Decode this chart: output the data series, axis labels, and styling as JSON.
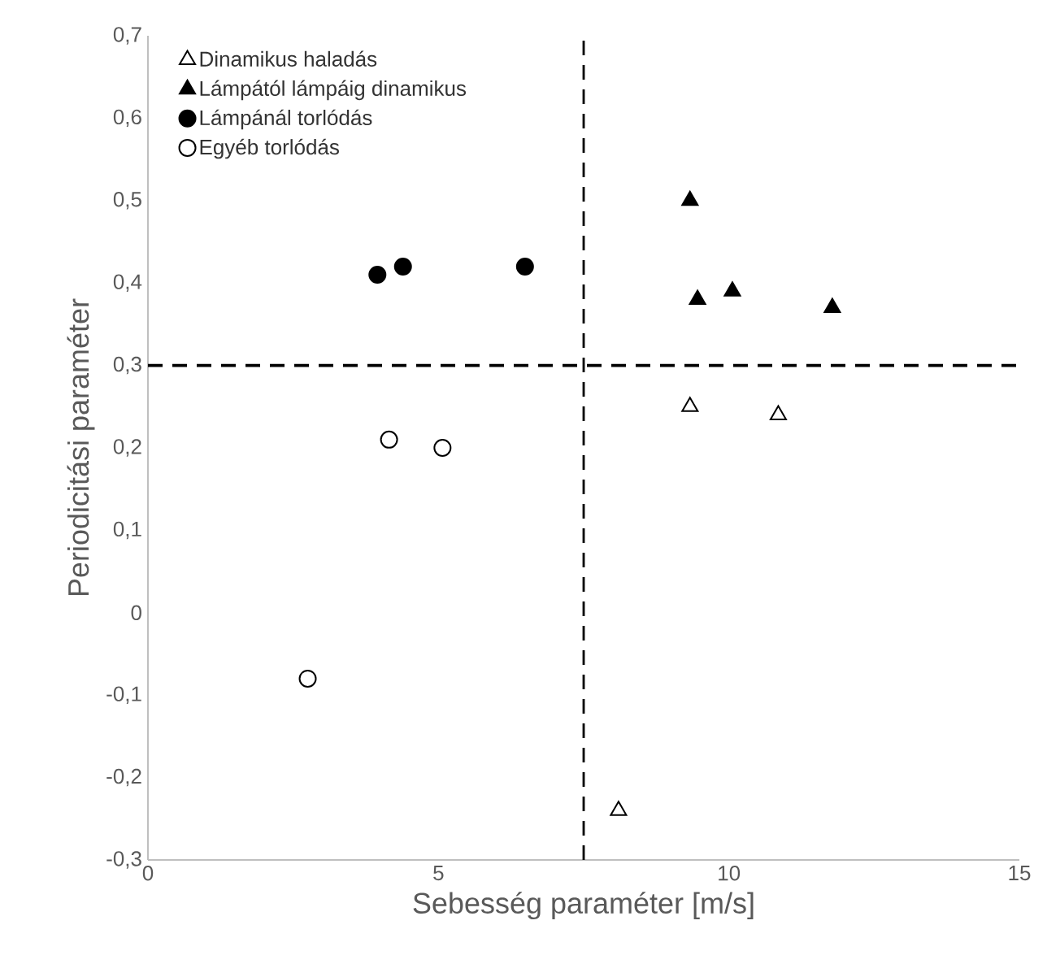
{
  "chart_data": {
    "type": "scatter",
    "xlabel": "Sebesség paraméter [m/s]",
    "ylabel": "Periodicitási paraméter",
    "xlim": [
      0,
      15
    ],
    "ylim": [
      -0.3,
      0.7
    ],
    "xticks": [
      0,
      5,
      10,
      15
    ],
    "yticks": [
      {
        "value": -0.3,
        "label": "-0,3"
      },
      {
        "value": -0.2,
        "label": "-0,2"
      },
      {
        "value": -0.1,
        "label": "-0,1"
      },
      {
        "value": 0,
        "label": "0"
      },
      {
        "value": 0.1,
        "label": "0,1"
      },
      {
        "value": 0.2,
        "label": "0,2"
      },
      {
        "value": 0.3,
        "label": "0,3"
      },
      {
        "value": 0.4,
        "label": "0,4"
      },
      {
        "value": 0.5,
        "label": "0,5"
      },
      {
        "value": 0.6,
        "label": "0,6"
      },
      {
        "value": 0.7,
        "label": "0,7"
      }
    ],
    "grid": false,
    "legend": "top left",
    "series": [
      {
        "name": "Dinamikus haladás",
        "color": "#ffffff",
        "marker": "triangle",
        "x": [
          9.33,
          10.85,
          8.1
        ],
        "values": [
          0.25,
          0.24,
          -0.24
        ]
      },
      {
        "name": "Lámpától lámpáig dinamikus",
        "color": "#000000",
        "marker": "triangle",
        "x": [
          9.33,
          9.46,
          10.06,
          11.78
        ],
        "values": [
          0.5,
          0.38,
          0.39,
          0.37
        ]
      },
      {
        "name": "Lámpánál torlódás",
        "color": "#000000",
        "marker": "circle",
        "x": [
          3.95,
          4.39,
          6.49
        ],
        "values": [
          0.41,
          0.42,
          0.42
        ]
      },
      {
        "name": "Egyéb torlódás",
        "color": "#ffffff",
        "marker": "circle",
        "x": [
          4.15,
          5.07,
          2.75
        ],
        "values": [
          0.21,
          0.2,
          -0.08
        ]
      }
    ],
    "ref_lines": [
      {
        "axis": "y",
        "value": 0.3,
        "line_style": "dashed"
      },
      {
        "axis": "x",
        "value": 7.5,
        "line_style": "dashed"
      }
    ]
  }
}
